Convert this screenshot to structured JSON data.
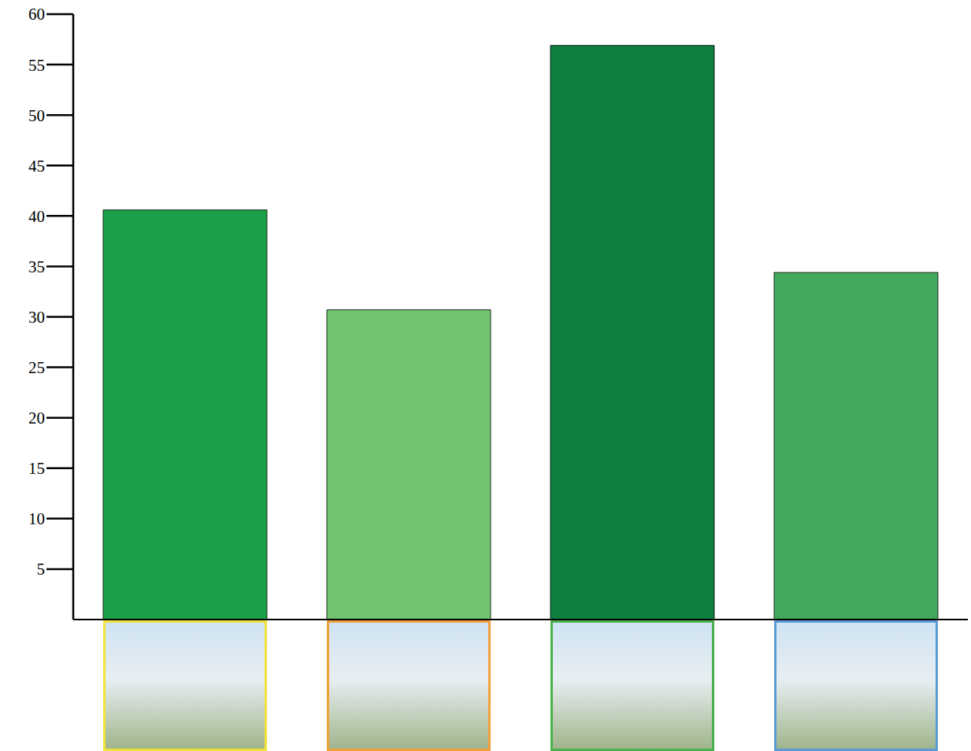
{
  "chart_data": {
    "type": "bar",
    "categories": [
      null,
      null,
      null,
      null
    ],
    "values": [
      40.6,
      30.7,
      56.9,
      34.4
    ],
    "colors": [
      "#1aa147",
      "#72c36f",
      "#0e7f40",
      "#43a85b"
    ],
    "ylim": [
      0,
      60
    ],
    "yticks": [
      5,
      10,
      15,
      20,
      25,
      30,
      35,
      40,
      45,
      50,
      55,
      60
    ],
    "grid": false,
    "tick_labels": "y"
  }
}
